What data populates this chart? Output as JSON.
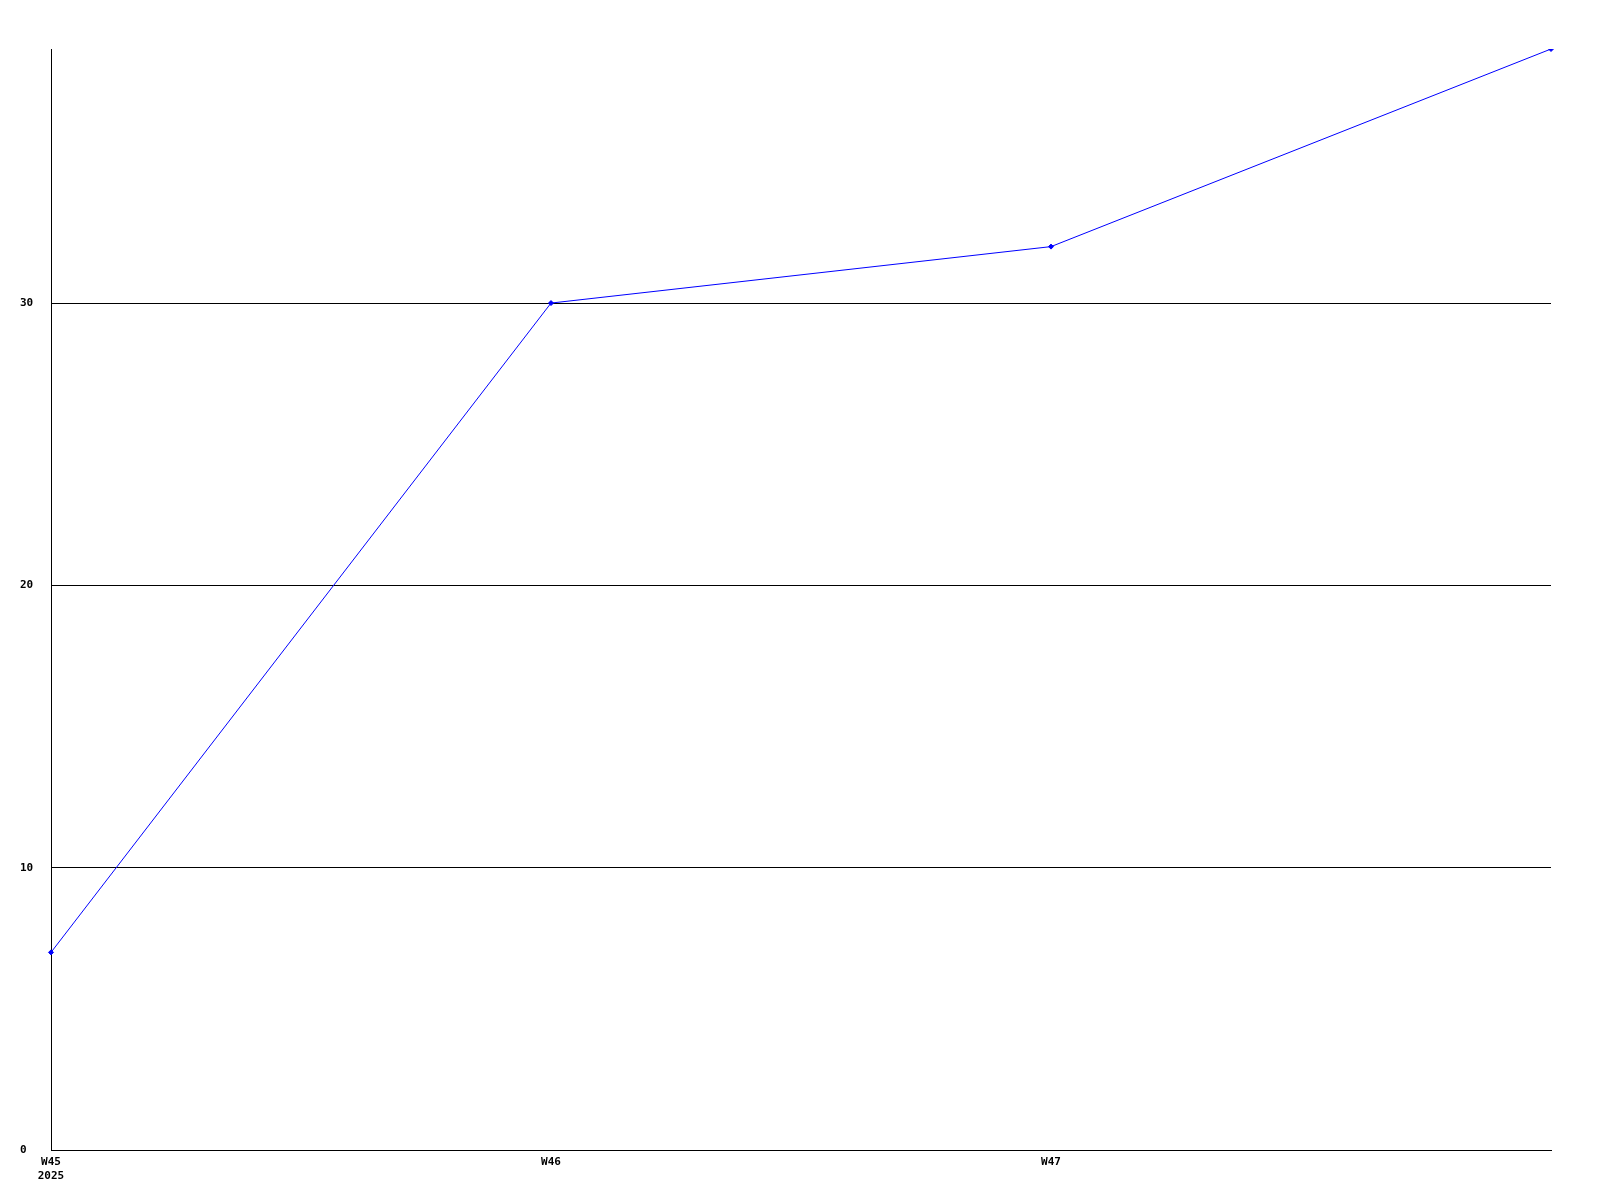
{
  "chart_data": {
    "type": "line",
    "categories": [
      "W45\n2025",
      "W46",
      "W47",
      null
    ],
    "series": [
      {
        "color": "#0000ff",
        "values": [
          7,
          30,
          32,
          39
        ]
      }
    ],
    "ylim": [
      0,
      39
    ],
    "yticks": [
      0,
      10,
      20,
      30
    ],
    "grid": "y",
    "legend": false,
    "marker": "diamond"
  }
}
